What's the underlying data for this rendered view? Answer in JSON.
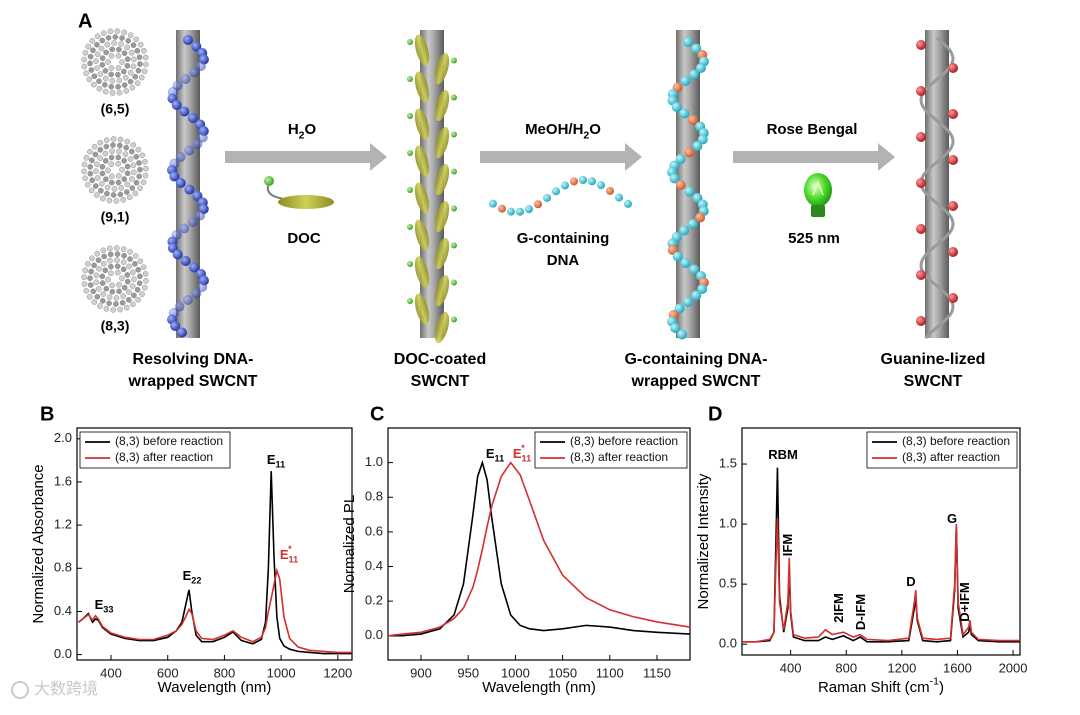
{
  "diagram": {
    "panel": "A",
    "chiralities": [
      "(6,5)",
      "(9,1)",
      "(8,3)"
    ],
    "steps": [
      {
        "reagent": {
          "text": "H",
          "sub": "2",
          "tail": "O"
        },
        "detail": [
          "DOC"
        ]
      },
      {
        "reagent": {
          "text": "MeOH/H",
          "sub": "2",
          "tail": "O"
        },
        "detail": [
          "G-containing",
          "DNA"
        ]
      },
      {
        "reagent": "Rose Bengal",
        "detail": [
          "525 nm"
        ]
      }
    ],
    "stages": [
      [
        "Resolving DNA-",
        "wrapped SWCNT"
      ],
      [
        "DOC-coated",
        "SWCNT"
      ],
      [
        "G-containing DNA-",
        "wrapped SWCNT"
      ],
      [
        "Guanine-lized",
        "SWCNT"
      ]
    ]
  },
  "chart_data": [
    {
      "type": "line",
      "panel": "B",
      "x_label": "Wavelength (nm)",
      "y_label": "Normalized Absorbance",
      "x": [
        285,
        300,
        320,
        335,
        345,
        355,
        370,
        400,
        450,
        500,
        550,
        600,
        630,
        650,
        665,
        675,
        685,
        700,
        720,
        760,
        800,
        830,
        860,
        900,
        930,
        945,
        955,
        965,
        975,
        985,
        995,
        1010,
        1030,
        1060,
        1100,
        1150,
        1200,
        1250
      ],
      "series": [
        {
          "name": "(8,3) before reaction",
          "color": "#000000",
          "values": [
            0.3,
            0.33,
            0.38,
            0.3,
            0.33,
            0.32,
            0.25,
            0.19,
            0.15,
            0.13,
            0.13,
            0.16,
            0.22,
            0.3,
            0.48,
            0.6,
            0.4,
            0.18,
            0.12,
            0.12,
            0.16,
            0.21,
            0.13,
            0.1,
            0.14,
            0.3,
            0.8,
            1.7,
            0.9,
            0.35,
            0.15,
            0.08,
            0.05,
            0.03,
            0.02,
            0.01,
            0.01,
            0.01
          ]
        },
        {
          "name": "(8,3) after reaction",
          "color": "#d32f2f",
          "values": [
            0.3,
            0.33,
            0.37,
            0.32,
            0.36,
            0.33,
            0.26,
            0.2,
            0.16,
            0.14,
            0.14,
            0.18,
            0.22,
            0.28,
            0.36,
            0.42,
            0.38,
            0.22,
            0.15,
            0.14,
            0.18,
            0.22,
            0.16,
            0.12,
            0.16,
            0.25,
            0.4,
            0.52,
            0.65,
            0.78,
            0.7,
            0.35,
            0.15,
            0.07,
            0.04,
            0.03,
            0.02,
            0.02
          ]
        }
      ],
      "xlim": [
        280,
        1250
      ],
      "ylim": [
        -0.05,
        2.1
      ],
      "xticks": [
        400,
        600,
        800,
        1000,
        1200
      ],
      "yticks": [
        {
          "value": 0,
          "label": "0.0"
        },
        0.4,
        0.8,
        1.2,
        1.6,
        {
          "value": 2,
          "label": "2.0"
        }
      ],
      "legend": "upper left",
      "annotations": [
        {
          "text": "E",
          "sub": "33"
        },
        {
          "text": "E",
          "sub": "22"
        },
        {
          "text": "E",
          "sub": "11"
        },
        {
          "text": "E",
          "sub": "11",
          "sup": "*",
          "color": "#d32f2f"
        }
      ]
    },
    {
      "type": "line",
      "panel": "C",
      "x_label": "Wavelength (nm)",
      "y_label": "Normalized PL",
      "x": [
        865,
        880,
        900,
        920,
        935,
        945,
        955,
        960,
        965,
        970,
        975,
        985,
        995,
        1005,
        1015,
        1030,
        1050,
        1075,
        1100,
        1125,
        1150,
        1185
      ],
      "series": [
        {
          "name": "(8,3) before reaction",
          "color": "#000000",
          "values": [
            0.0,
            0.0,
            0.01,
            0.04,
            0.12,
            0.3,
            0.7,
            0.92,
            1.0,
            0.9,
            0.68,
            0.3,
            0.12,
            0.06,
            0.04,
            0.03,
            0.04,
            0.06,
            0.05,
            0.03,
            0.02,
            0.01
          ]
        },
        {
          "name": "(8,3) after reaction",
          "color": "#d32f2f",
          "values": [
            0.0,
            0.01,
            0.02,
            0.05,
            0.1,
            0.16,
            0.28,
            0.38,
            0.5,
            0.63,
            0.75,
            0.92,
            1.0,
            0.93,
            0.78,
            0.55,
            0.35,
            0.22,
            0.15,
            0.11,
            0.08,
            0.05
          ]
        }
      ],
      "xlim": [
        865,
        1185
      ],
      "ylim": [
        -0.14,
        1.2
      ],
      "xticks": [
        900,
        950,
        1000,
        1050,
        1100,
        1150
      ],
      "yticks": [
        {
          "value": 0,
          "label": "0.0"
        },
        0.2,
        0.4,
        0.6,
        0.8,
        {
          "value": 1,
          "label": "1.0"
        }
      ],
      "legend": "upper right",
      "annotations": [
        {
          "text": "E",
          "sub": "11"
        },
        {
          "text": "E",
          "sub": "11",
          "sup": "*",
          "color": "#d32f2f"
        }
      ]
    },
    {
      "type": "line",
      "panel": "D",
      "x_label": {
        "text": "Raman Shift (cm",
        "sup": "-1",
        "tail": ")"
      },
      "y_label": "Normalized Intensity",
      "x": [
        50,
        150,
        250,
        280,
        295,
        305,
        320,
        350,
        380,
        390,
        400,
        420,
        500,
        600,
        650,
        700,
        780,
        850,
        900,
        950,
        1100,
        1250,
        1290,
        1300,
        1310,
        1350,
        1450,
        1550,
        1580,
        1592,
        1605,
        1640,
        1680,
        1690,
        1700,
        1750,
        1900,
        2050
      ],
      "series": [
        {
          "name": "(8,3) before reaction",
          "color": "#000000",
          "values": [
            0.02,
            0.02,
            0.03,
            0.1,
            0.9,
            1.47,
            0.4,
            0.1,
            0.3,
            0.62,
            0.25,
            0.06,
            0.03,
            0.03,
            0.06,
            0.04,
            0.07,
            0.03,
            0.06,
            0.02,
            0.02,
            0.03,
            0.3,
            0.4,
            0.2,
            0.03,
            0.02,
            0.03,
            0.45,
            0.98,
            0.3,
            0.06,
            0.1,
            0.15,
            0.08,
            0.03,
            0.02,
            0.02
          ]
        },
        {
          "name": "(8,3) after reaction",
          "color": "#d32f2f",
          "values": [
            0.02,
            0.02,
            0.04,
            0.1,
            0.7,
            1.05,
            0.35,
            0.12,
            0.35,
            0.72,
            0.28,
            0.08,
            0.05,
            0.06,
            0.12,
            0.08,
            0.1,
            0.06,
            0.08,
            0.04,
            0.03,
            0.05,
            0.35,
            0.45,
            0.22,
            0.05,
            0.04,
            0.05,
            0.5,
            1.0,
            0.35,
            0.08,
            0.14,
            0.2,
            0.1,
            0.04,
            0.03,
            0.03
          ]
        }
      ],
      "xlim": [
        50,
        2050
      ],
      "ylim": [
        -0.09,
        1.8
      ],
      "xticks": [
        400,
        800,
        1200,
        1600,
        2000
      ],
      "yticks": [
        {
          "value": 0,
          "label": "0.0"
        },
        0.5,
        {
          "value": 1,
          "label": "1.0"
        },
        1.5
      ],
      "legend": "upper right",
      "annotations": [
        {
          "text": "RBM"
        },
        {
          "text": "IFM"
        },
        {
          "text": "2IFM"
        },
        {
          "text": "D-IFM"
        },
        {
          "text": "D"
        },
        {
          "text": "G"
        },
        {
          "text": "D+IFM"
        }
      ]
    }
  ],
  "watermark": "大数跨境"
}
